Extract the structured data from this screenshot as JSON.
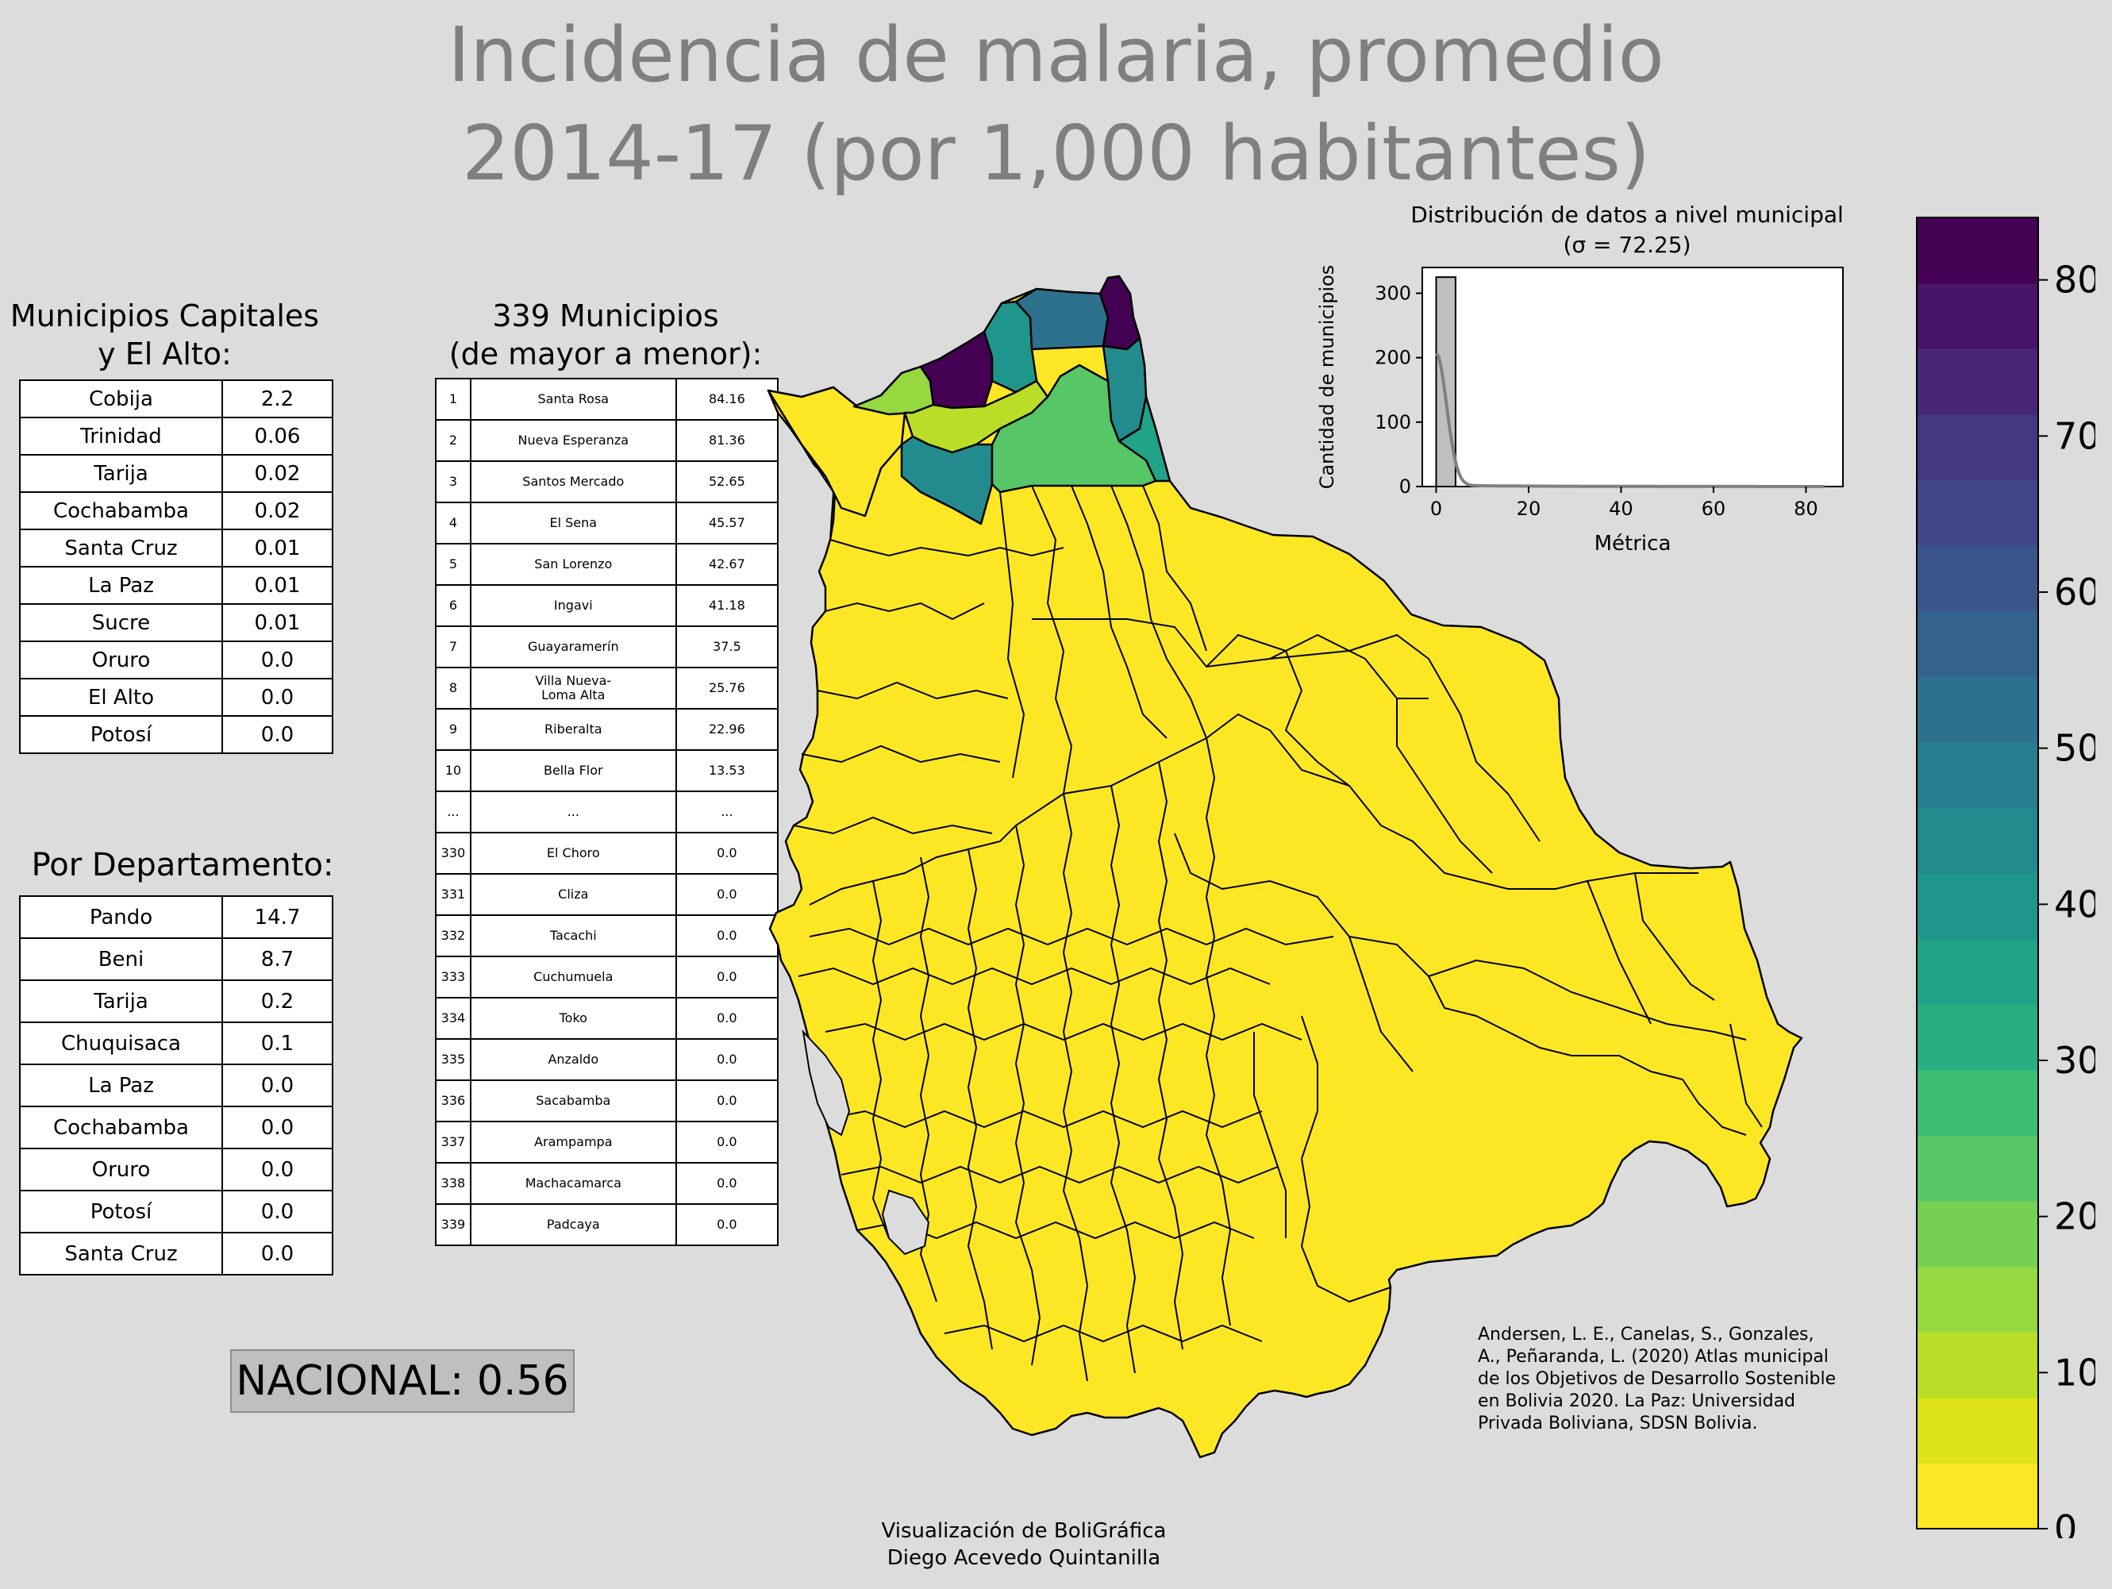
{
  "title": [
    "Incidencia de malaria, promedio",
    "2014-17 (por 1,000 habitantes)"
  ],
  "capitales": {
    "heading": [
      "Municipios Capitales",
      "y El Alto:"
    ],
    "rows": [
      {
        "name": "Cobija",
        "value": "2.2"
      },
      {
        "name": "Trinidad",
        "value": "0.06"
      },
      {
        "name": "Tarija",
        "value": "0.02"
      },
      {
        "name": "Cochabamba",
        "value": "0.02"
      },
      {
        "name": "Santa Cruz",
        "value": "0.01"
      },
      {
        "name": "La Paz",
        "value": "0.01"
      },
      {
        "name": "Sucre",
        "value": "0.01"
      },
      {
        "name": "Oruro",
        "value": "0.0"
      },
      {
        "name": "El Alto",
        "value": "0.0"
      },
      {
        "name": "Potosí",
        "value": "0.0"
      }
    ]
  },
  "departamentos": {
    "heading": "Por Departamento:",
    "rows": [
      {
        "name": "Pando",
        "value": "14.7"
      },
      {
        "name": "Beni",
        "value": "8.7"
      },
      {
        "name": "Tarija",
        "value": "0.2"
      },
      {
        "name": "Chuquisaca",
        "value": "0.1"
      },
      {
        "name": "La Paz",
        "value": "0.0"
      },
      {
        "name": "Cochabamba",
        "value": "0.0"
      },
      {
        "name": "Oruro",
        "value": "0.0"
      },
      {
        "name": "Potosí",
        "value": "0.0"
      },
      {
        "name": "Santa Cruz",
        "value": "0.0"
      }
    ]
  },
  "municipios": {
    "heading": [
      "339 Municipios",
      "(de mayor a menor):"
    ],
    "rows": [
      {
        "rank": "1",
        "name": "Santa Rosa",
        "value": "84.16"
      },
      {
        "rank": "2",
        "name": "Nueva Esperanza",
        "value": "81.36"
      },
      {
        "rank": "3",
        "name": "Santos Mercado",
        "value": "52.65"
      },
      {
        "rank": "4",
        "name": "El Sena",
        "value": "45.57"
      },
      {
        "rank": "5",
        "name": "San Lorenzo",
        "value": "42.67"
      },
      {
        "rank": "6",
        "name": "Ingavi",
        "value": "41.18"
      },
      {
        "rank": "7",
        "name": "Guayaramerín",
        "value": "37.5"
      },
      {
        "rank": "8",
        "name": "Villa Nueva-\nLoma Alta",
        "value": "25.76"
      },
      {
        "rank": "9",
        "name": "Riberalta",
        "value": "22.96"
      },
      {
        "rank": "10",
        "name": "Bella Flor",
        "value": "13.53"
      },
      {
        "rank": "...",
        "name": "...",
        "value": "..."
      },
      {
        "rank": "330",
        "name": "El Choro",
        "value": "0.0"
      },
      {
        "rank": "331",
        "name": "Cliza",
        "value": "0.0"
      },
      {
        "rank": "332",
        "name": "Tacachi",
        "value": "0.0"
      },
      {
        "rank": "333",
        "name": "Cuchumuela",
        "value": "0.0"
      },
      {
        "rank": "334",
        "name": "Toko",
        "value": "0.0"
      },
      {
        "rank": "335",
        "name": "Anzaldo",
        "value": "0.0"
      },
      {
        "rank": "336",
        "name": "Sacabamba",
        "value": "0.0"
      },
      {
        "rank": "337",
        "name": "Arampampa",
        "value": "0.0"
      },
      {
        "rank": "338",
        "name": "Machacamarca",
        "value": "0.0"
      },
      {
        "rank": "339",
        "name": "Padcaya",
        "value": "0.0"
      }
    ]
  },
  "nacional": "NACIONAL: 0.56",
  "histogram": {
    "title": [
      "Distribución de datos a nivel municipal",
      "(σ = 72.25)"
    ],
    "xlabel": "Métrica",
    "ylabel": "Cantidad de municipios",
    "xticks": [
      "0",
      "20",
      "40",
      "60",
      "80"
    ],
    "yticks": [
      "0",
      "100",
      "200",
      "300"
    ],
    "xlim": [
      -3,
      88
    ],
    "ylim": [
      0,
      340
    ],
    "bin_width": 4.2,
    "bins": [
      {
        "x0": 0,
        "count": 325
      }
    ],
    "kde_color": "#808080",
    "bar_color": "#bfbfbf"
  },
  "colorbar": {
    "min": 0,
    "max": 84,
    "ticks": [
      "0",
      "10",
      "20",
      "30",
      "40",
      "50",
      "60",
      "70",
      "80"
    ],
    "colors": [
      "#fde725",
      "#dde318",
      "#bade28",
      "#95d840",
      "#75d054",
      "#56c667",
      "#3dbc74",
      "#29af7f",
      "#20a386",
      "#1f968b",
      "#238a8d",
      "#287d8e",
      "#2d718e",
      "#33638d",
      "#39558c",
      "#404688",
      "#453781",
      "#482576",
      "#481467",
      "#440154"
    ]
  },
  "map_colors": {
    "low": "#fde725",
    "high": "#440154",
    "stroke": "#000000"
  },
  "citation": [
    "Andersen, L. E., Canelas, S., Gonzales,",
    "A., Peñaranda, L. (2020) Atlas municipal",
    "de los Objetivos de Desarrollo Sostenible",
    "en Bolivia 2020. La Paz: Universidad",
    "Privada Boliviana, SDSN Bolivia."
  ],
  "credit": [
    "Visualización de BoliGráfica",
    "Diego Acevedo Quintanilla"
  ]
}
